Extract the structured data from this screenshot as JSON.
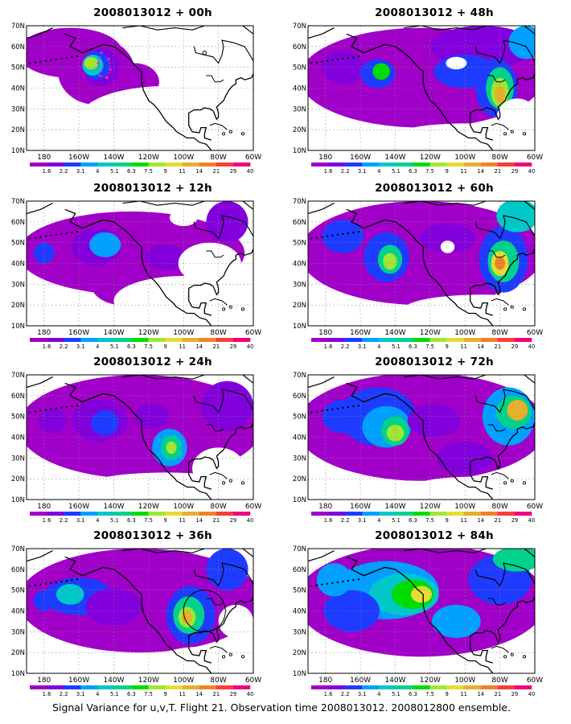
{
  "figure": {
    "footer": "Signal Variance for u,v,T. Flight 21. Observation time 2008013012. 2008012800 ensemble."
  },
  "panels": [
    {
      "title": "2008013012 + 00h"
    },
    {
      "title": "2008013012 + 48h"
    },
    {
      "title": "2008013012 + 12h"
    },
    {
      "title": "2008013012 + 60h"
    },
    {
      "title": "2008013012 + 24h"
    },
    {
      "title": "2008013012 + 72h"
    },
    {
      "title": "2008013012 + 36h"
    },
    {
      "title": "2008013012 + 84h"
    }
  ],
  "axes": {
    "lon_labels": [
      "180",
      "160W",
      "140W",
      "120W",
      "100W",
      "80W",
      "60W"
    ],
    "lat_labels": [
      "10N",
      "20N",
      "30N",
      "40N",
      "50N",
      "60N",
      "70N"
    ],
    "lon_range_deg_east": [
      -190,
      -60
    ],
    "lat_range_deg_north": [
      10,
      70
    ]
  },
  "colorbar": {
    "levels": [
      "1.6",
      "2.2",
      "3.1",
      "4",
      "5.1",
      "6.3",
      "7.5",
      "9",
      "11",
      "14",
      "21",
      "29",
      "40"
    ],
    "colors": [
      "#a000c8",
      "#8200dc",
      "#1e3cff",
      "#00a0ff",
      "#00c8c8",
      "#00d28c",
      "#00dc00",
      "#a0e632",
      "#e6dc32",
      "#e6af2d",
      "#f08228",
      "#fa3c3c",
      "#f00082"
    ]
  }
}
